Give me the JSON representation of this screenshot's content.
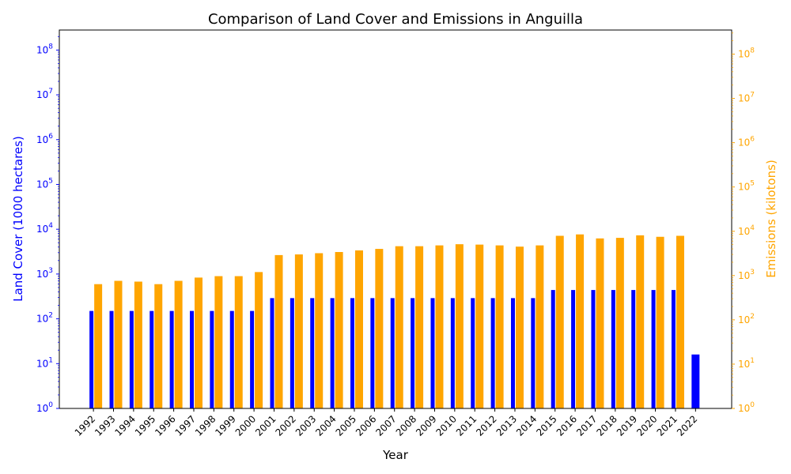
{
  "chart_data": {
    "type": "bar",
    "title": "Comparison of Land Cover and Emissions in Anguilla",
    "xlabel": "Year",
    "ylabel_left": "Land Cover (1000 hectares)",
    "ylabel_right": "Emissions (kilotons)",
    "y_scale": "log",
    "ylim_left": [
      1,
      280000000
    ],
    "ylim_right": [
      1,
      350000000
    ],
    "left_ticks": [
      {
        "value": 1,
        "base": "10",
        "exp": "0"
      },
      {
        "value": 10,
        "base": "10",
        "exp": "1"
      },
      {
        "value": 100,
        "base": "10",
        "exp": "2"
      },
      {
        "value": 1000,
        "base": "10",
        "exp": "3"
      },
      {
        "value": 10000,
        "base": "10",
        "exp": "4"
      },
      {
        "value": 100000,
        "base": "10",
        "exp": "5"
      },
      {
        "value": 1000000,
        "base": "10",
        "exp": "6"
      },
      {
        "value": 10000000,
        "base": "10",
        "exp": "7"
      },
      {
        "value": 100000000,
        "base": "10",
        "exp": "8"
      }
    ],
    "right_ticks": [
      {
        "value": 1,
        "base": "10",
        "exp": "0"
      },
      {
        "value": 10,
        "base": "10",
        "exp": "1"
      },
      {
        "value": 100,
        "base": "10",
        "exp": "2"
      },
      {
        "value": 1000,
        "base": "10",
        "exp": "3"
      },
      {
        "value": 10000,
        "base": "10",
        "exp": "4"
      },
      {
        "value": 100000,
        "base": "10",
        "exp": "5"
      },
      {
        "value": 1000000,
        "base": "10",
        "exp": "6"
      },
      {
        "value": 10000000,
        "base": "10",
        "exp": "7"
      },
      {
        "value": 100000000,
        "base": "10",
        "exp": "8"
      }
    ],
    "categories": [
      "1992",
      "1993",
      "1994",
      "1995",
      "1996",
      "1997",
      "1998",
      "1999",
      "2000",
      "2001",
      "2002",
      "2003",
      "2004",
      "2005",
      "2006",
      "2007",
      "2008",
      "2009",
      "2010",
      "2011",
      "2012",
      "2013",
      "2014",
      "2015",
      "2016",
      "2017",
      "2018",
      "2019",
      "2020",
      "2021",
      "2022"
    ],
    "series": [
      {
        "axis": "left",
        "color": "#0000ff",
        "values": [
          150,
          150,
          150,
          150,
          150,
          150,
          150,
          150,
          150,
          290,
          290,
          290,
          290,
          290,
          290,
          290,
          290,
          290,
          290,
          290,
          290,
          290,
          290,
          440,
          440,
          440,
          440,
          440,
          440,
          440,
          16
        ]
      },
      {
        "axis": "right",
        "color": "#ffa500",
        "values": [
          640,
          760,
          730,
          640,
          760,
          900,
          970,
          970,
          1200,
          2900,
          3000,
          3200,
          3400,
          3700,
          4000,
          4600,
          4600,
          4800,
          5100,
          5000,
          4800,
          4500,
          4800,
          7900,
          8500,
          6900,
          7100,
          8100,
          7500,
          7900,
          null
        ]
      }
    ],
    "left_axis_color": "#0000ff",
    "right_axis_color": "#ffa500",
    "grid": false,
    "legend": false
  }
}
